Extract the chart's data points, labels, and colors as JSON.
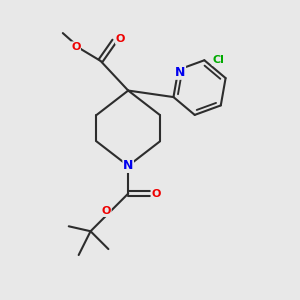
{
  "bg_color": "#e8e8e8",
  "bond_color": "#2d2d2d",
  "bond_width": 1.5,
  "atom_colors": {
    "N": "#0000ee",
    "O": "#ee0000",
    "Cl": "#00aa00",
    "C": "#2d2d2d"
  },
  "font_size": 8,
  "figsize": [
    3.0,
    3.0
  ],
  "dpi": 100
}
